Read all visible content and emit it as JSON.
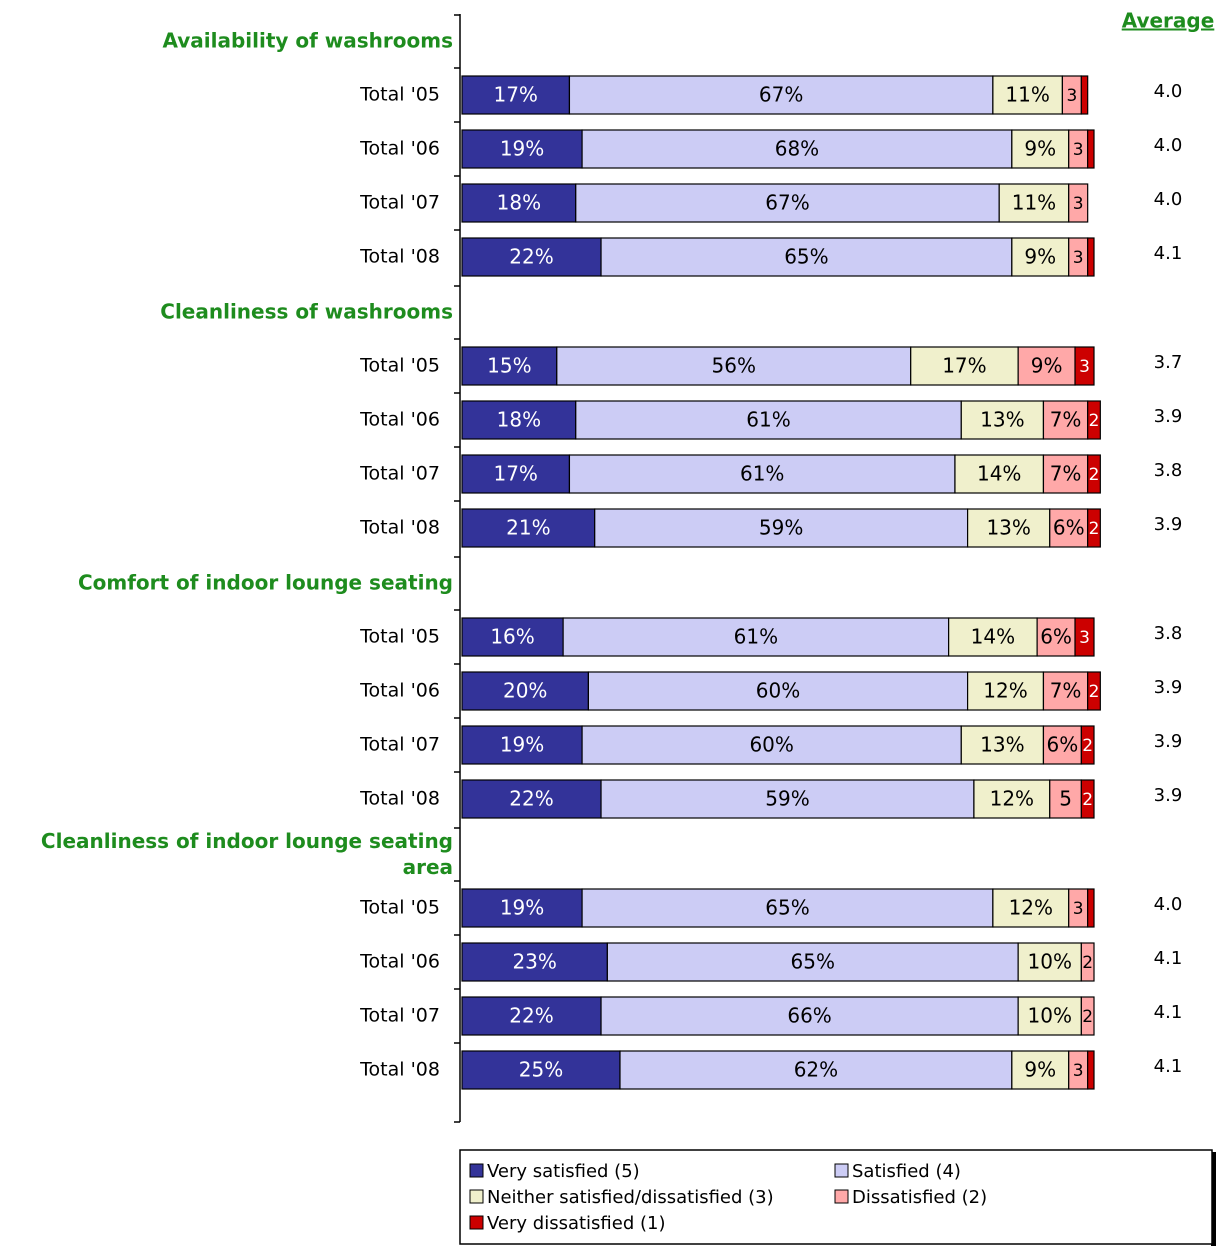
{
  "average_title": "Average",
  "legend": [
    {
      "name": "Very satisfied (5)",
      "color": "#333399"
    },
    {
      "name": "Satisfied (4)",
      "color": "#ccccf5"
    },
    {
      "name": "Neither satisfied/dissatisfied (3)",
      "color": "#f0f0cc"
    },
    {
      "name": "Dissatisfied (2)",
      "color": "#ffa8a8"
    },
    {
      "name": "Very dissatisfied (1)",
      "color": "#cc0000"
    }
  ],
  "chart_data": [
    {
      "type": "bar",
      "stacked": true,
      "title": "Availability of washrooms",
      "categories": [
        "Total '05",
        "Total '06",
        "Total '07",
        "Total '08"
      ],
      "averages": [
        "4.0",
        "4.0",
        "4.0",
        "4.1"
      ],
      "series": [
        {
          "values": [
            17,
            19,
            18,
            22
          ],
          "value_labels": [
            "17%",
            "19%",
            "18%",
            "22%"
          ]
        },
        {
          "values": [
            67,
            68,
            67,
            65
          ],
          "value_labels": [
            "67%",
            "68%",
            "67%",
            "65%"
          ]
        },
        {
          "values": [
            11,
            9,
            11,
            9
          ],
          "value_labels": [
            "11%",
            "9%",
            "11%",
            "9%"
          ]
        },
        {
          "values": [
            3,
            3,
            3,
            3
          ],
          "value_labels": [
            "3",
            "3",
            "3",
            "3"
          ]
        },
        {
          "values": [
            1,
            1,
            0,
            1
          ],
          "value_labels": [
            null,
            null,
            null,
            null
          ]
        }
      ]
    },
    {
      "type": "bar",
      "stacked": true,
      "title": "Cleanliness of washrooms",
      "categories": [
        "Total '05",
        "Total '06",
        "Total '07",
        "Total '08"
      ],
      "averages": [
        "3.7",
        "3.9",
        "3.8",
        "3.9"
      ],
      "series": [
        {
          "values": [
            15,
            18,
            17,
            21
          ],
          "value_labels": [
            "15%",
            "18%",
            "17%",
            "21%"
          ]
        },
        {
          "values": [
            56,
            61,
            61,
            59
          ],
          "value_labels": [
            "56%",
            "61%",
            "61%",
            "59%"
          ]
        },
        {
          "values": [
            17,
            13,
            14,
            13
          ],
          "value_labels": [
            "17%",
            "13%",
            "14%",
            "13%"
          ]
        },
        {
          "values": [
            9,
            7,
            7,
            6
          ],
          "value_labels": [
            "9%",
            "7%",
            "7%",
            "6%"
          ]
        },
        {
          "values": [
            3,
            2,
            2,
            2
          ],
          "value_labels": [
            "3",
            "2",
            "2",
            "2"
          ]
        }
      ]
    },
    {
      "type": "bar",
      "stacked": true,
      "title": "Comfort of indoor lounge seating",
      "categories": [
        "Total '05",
        "Total '06",
        "Total '07",
        "Total '08"
      ],
      "averages": [
        "3.8",
        "3.9",
        "3.9",
        "3.9"
      ],
      "series": [
        {
          "values": [
            16,
            20,
            19,
            22
          ],
          "value_labels": [
            "16%",
            "20%",
            "19%",
            "22%"
          ]
        },
        {
          "values": [
            61,
            60,
            60,
            59
          ],
          "value_labels": [
            "61%",
            "60%",
            "60%",
            "59%"
          ]
        },
        {
          "values": [
            14,
            12,
            13,
            12
          ],
          "value_labels": [
            "14%",
            "12%",
            "13%",
            "12%"
          ]
        },
        {
          "values": [
            6,
            7,
            6,
            5
          ],
          "value_labels": [
            "6%",
            "7%",
            "6%",
            "5"
          ]
        },
        {
          "values": [
            3,
            2,
            2,
            2
          ],
          "value_labels": [
            "3",
            "2",
            "2",
            "2"
          ]
        }
      ]
    },
    {
      "type": "bar",
      "stacked": true,
      "title": "Cleanliness of indoor lounge seating area",
      "categories": [
        "Total '05",
        "Total '06",
        "Total '07",
        "Total '08"
      ],
      "averages": [
        "4.0",
        "4.1",
        "4.1",
        "4.1"
      ],
      "series": [
        {
          "values": [
            19,
            23,
            22,
            25
          ],
          "value_labels": [
            "19%",
            "23%",
            "22%",
            "25%"
          ]
        },
        {
          "values": [
            65,
            65,
            66,
            62
          ],
          "value_labels": [
            "65%",
            "65%",
            "66%",
            "62%"
          ]
        },
        {
          "values": [
            12,
            10,
            10,
            9
          ],
          "value_labels": [
            "12%",
            "10%",
            "10%",
            "9%"
          ]
        },
        {
          "values": [
            3,
            2,
            2,
            3
          ],
          "value_labels": [
            "3",
            "2",
            "2",
            "3"
          ]
        },
        {
          "values": [
            1,
            0,
            0,
            1
          ],
          "value_labels": [
            null,
            null,
            null,
            null
          ]
        }
      ]
    }
  ]
}
